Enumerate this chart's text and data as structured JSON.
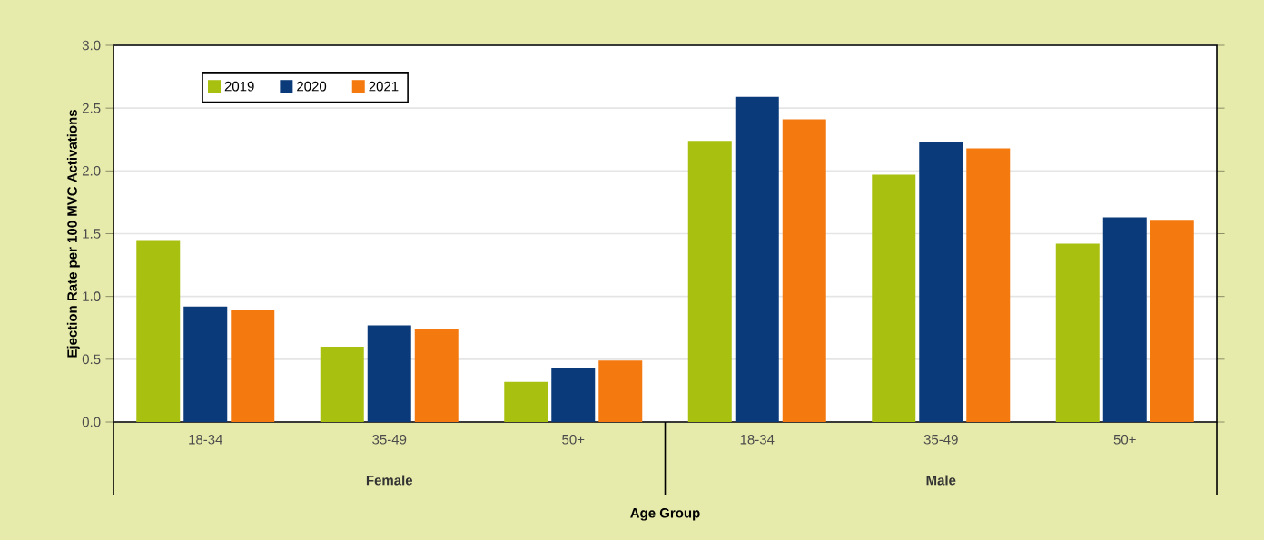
{
  "chart_data": {
    "type": "bar",
    "xlabel": "Age Group",
    "ylabel": "Ejection Rate per 100 MVC Activations",
    "categories": [
      "18-34",
      "35-49",
      "50+",
      "18-34",
      "35-49",
      "50+"
    ],
    "annotations": [
      "Female",
      "Male"
    ],
    "series": [
      {
        "name": "2019",
        "color": "#a8c010",
        "values": [
          1.45,
          0.6,
          0.32,
          2.24,
          1.97,
          1.42
        ]
      },
      {
        "name": "2020",
        "color": "#0a3a7a",
        "values": [
          0.92,
          0.77,
          0.43,
          2.59,
          2.23,
          1.63
        ]
      },
      {
        "name": "2021",
        "color": "#f47a10",
        "values": [
          0.89,
          0.74,
          0.49,
          2.41,
          2.18,
          1.61
        ]
      }
    ],
    "ylim": [
      0,
      3.0
    ],
    "yticks": [
      {
        "value": 0,
        "label": "0.0"
      },
      {
        "value": 0.5,
        "label": "0.5"
      },
      {
        "value": 1.0,
        "label": "1.0"
      },
      {
        "value": 1.5,
        "label": "1.5"
      },
      {
        "value": 2.0,
        "label": "2.0"
      },
      {
        "value": 2.5,
        "label": "2.5"
      },
      {
        "value": 3.0,
        "label": "3.0"
      }
    ],
    "grid": "y",
    "legend": "top left"
  }
}
